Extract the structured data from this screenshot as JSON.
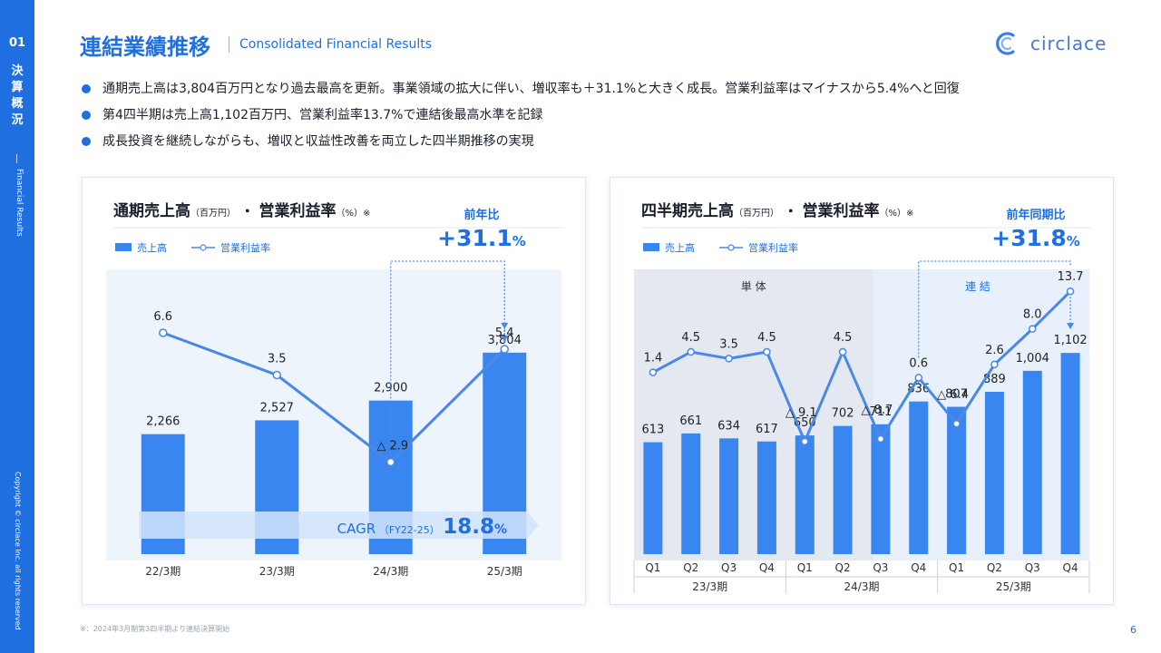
{
  "sidebar": {
    "section_number": "01",
    "section_jp": [
      "決",
      "算",
      "概",
      "況"
    ],
    "section_en": "Financial Results",
    "copyright": "Copyright © circlace Inc. all rights reserved"
  },
  "header": {
    "title": "連結業績推移",
    "subtitle": "Consolidated Financial Results",
    "logo_text": "circlace"
  },
  "bullets": [
    "通期売上高は3,804百万円となり過去最高を更新。事業領域の拡大に伴い、増収率も＋31.1%と大きく成長。営業利益率はマイナスから5.4%へと回復",
    "第4四半期は売上高1,102百万円、営業利益率13.7%で連結後最高水準を記録",
    "成長投資を継続しながらも、増収と収益性改善を両立した四半期推移の実現"
  ],
  "footnote": "※：2024年3月期第3四半期より連結決算開始",
  "page_number": "6",
  "colors": {
    "accent": "#1f6fe0",
    "bar": "#3a86f0",
    "line": "#4a88e6",
    "plot_bg": "#eef4fc",
    "band_single": "#e4e9f1",
    "band_consolidated": "#e8f0fb"
  },
  "chart_data": [
    {
      "type": "bar",
      "title": "通期売上高",
      "title_unit": "（百万円）",
      "title_sep": "・",
      "title2": "営業利益率",
      "title2_unit": "（%）",
      "title_note": "※",
      "legend": {
        "bar": "売上高",
        "line": "営業利益率"
      },
      "yoy_label": "前年比",
      "yoy_value": "+31.1",
      "yoy_unit": "%",
      "categories": [
        "22/3期",
        "23/3期",
        "24/3期",
        "25/3期"
      ],
      "series": [
        {
          "name": "売上高",
          "type": "bar",
          "values": [
            2266,
            2527,
            2900,
            3804
          ],
          "labels": [
            "2,266",
            "2,527",
            "2,900",
            "3,804"
          ]
        },
        {
          "name": "営業利益率",
          "type": "line",
          "values": [
            6.6,
            3.5,
            -2.9,
            5.4
          ],
          "labels": [
            "6.6",
            "3.5",
            "△ 2.9",
            "5.4"
          ]
        }
      ],
      "cagr": {
        "label": "CAGR",
        "period": "（FY22-25）",
        "value": "18.8",
        "unit": "%"
      },
      "ylim_bar": [
        0,
        5000
      ],
      "ylim_line": [
        -6,
        10
      ]
    },
    {
      "type": "bar",
      "title": "四半期売上高",
      "title_unit": "（百万円）",
      "title_sep": "・",
      "title2": "営業利益率",
      "title2_unit": "（%）",
      "title_note": "※",
      "legend": {
        "bar": "売上高",
        "line": "営業利益率"
      },
      "yoy_label": "前年同期比",
      "yoy_value": "+31.8",
      "yoy_unit": "%",
      "band_labels": [
        "単 体",
        "連 結"
      ],
      "categories": [
        "Q1",
        "Q2",
        "Q3",
        "Q4",
        "Q1",
        "Q2",
        "Q3",
        "Q4",
        "Q1",
        "Q2",
        "Q3",
        "Q4"
      ],
      "groups": [
        "23/3期",
        "24/3期",
        "25/3期"
      ],
      "series": [
        {
          "name": "売上高",
          "type": "bar",
          "values": [
            613,
            661,
            634,
            617,
            650,
            702,
            711,
            836,
            807,
            889,
            1004,
            1102
          ],
          "labels": [
            "613",
            "661",
            "634",
            "617",
            "650",
            "702",
            "711",
            "836",
            "807",
            "889",
            "1,004",
            "1,102"
          ]
        },
        {
          "name": "営業利益率",
          "type": "line",
          "values": [
            1.4,
            4.5,
            3.5,
            4.5,
            -9.1,
            4.5,
            -8.7,
            0.6,
            -6.4,
            2.6,
            8.0,
            13.7
          ],
          "labels": [
            "1.4",
            "4.5",
            "3.5",
            "4.5",
            "△ 9.1",
            "4.5",
            "△ 8.7",
            "0.6",
            "△ 6.4",
            "2.6",
            "8.0",
            "13.7"
          ]
        }
      ],
      "ylim_bar": [
        0,
        1500
      ],
      "ylim_line": [
        -20,
        18
      ]
    }
  ]
}
